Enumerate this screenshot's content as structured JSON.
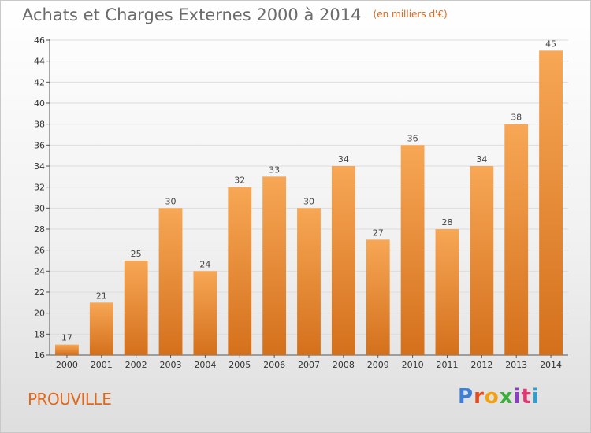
{
  "header": {
    "title": "Achats et Charges Externes 2000 à 2014",
    "subtitle": "(en milliers d'€)"
  },
  "footer": {
    "commune": "PROUVILLE",
    "logo_text": "Proxiti",
    "logo_colors": [
      "#3d7fd6",
      "#e84a1b",
      "#f1a10f",
      "#3fae3f",
      "#8b3fbf",
      "#e03a73",
      "#2ba0cf"
    ]
  },
  "colors": {
    "bar_light": "#f7a755",
    "bar_dark": "#d4701c",
    "grid": "#dcdcdc"
  },
  "chart_data": {
    "type": "bar",
    "title": "Achats et Charges Externes 2000 à 2014",
    "subtitle": "(en milliers d'€)",
    "categories": [
      "2000",
      "2001",
      "2002",
      "2003",
      "2004",
      "2005",
      "2006",
      "2007",
      "2008",
      "2009",
      "2010",
      "2011",
      "2012",
      "2013",
      "2014"
    ],
    "values": [
      17,
      21,
      25,
      30,
      24,
      32,
      33,
      30,
      34,
      27,
      36,
      28,
      34,
      38,
      45
    ],
    "xlabel": "",
    "ylabel": "",
    "ylim": [
      16,
      46
    ],
    "yticks": [
      16,
      18,
      20,
      22,
      24,
      26,
      28,
      30,
      32,
      34,
      36,
      38,
      40,
      42,
      44,
      46
    ],
    "grid": true,
    "legend": "none"
  }
}
